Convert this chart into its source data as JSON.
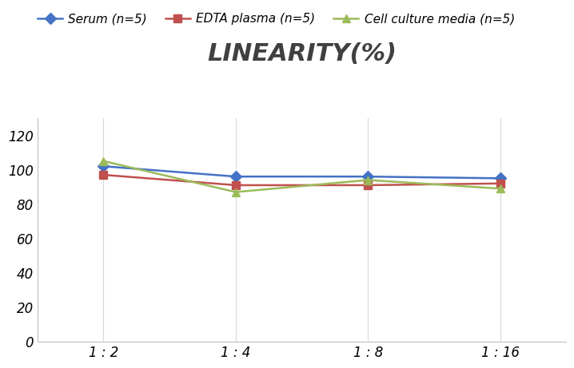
{
  "title": "LINEARITY(%)",
  "x_labels": [
    "1 : 2",
    "1 : 4",
    "1 : 8",
    "1 : 16"
  ],
  "x_positions": [
    0,
    1,
    2,
    3
  ],
  "series": [
    {
      "label": "Serum (n=5)",
      "color": "#4472C4",
      "marker": "D",
      "values": [
        102,
        96,
        96,
        95
      ]
    },
    {
      "label": "EDTA plasma (n=5)",
      "color": "#C0504D",
      "marker": "s",
      "values": [
        97,
        91,
        91,
        92
      ]
    },
    {
      "label": "Cell culture media (n=5)",
      "color": "#9BBB59",
      "marker": "^",
      "values": [
        105,
        87,
        94,
        89
      ]
    }
  ],
  "ylim": [
    0,
    130
  ],
  "yticks": [
    0,
    20,
    40,
    60,
    80,
    100,
    120
  ],
  "title_fontsize": 22,
  "legend_fontsize": 11,
  "tick_fontsize": 12,
  "background_color": "#ffffff",
  "grid_color": "#d9d9d9"
}
